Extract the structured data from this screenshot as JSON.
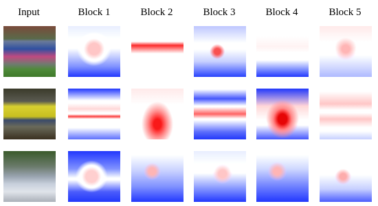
{
  "header": {
    "columns": [
      "Input",
      "Block 1",
      "Block 2",
      "Block 3",
      "Block 4",
      "Block 5"
    ]
  }
}
